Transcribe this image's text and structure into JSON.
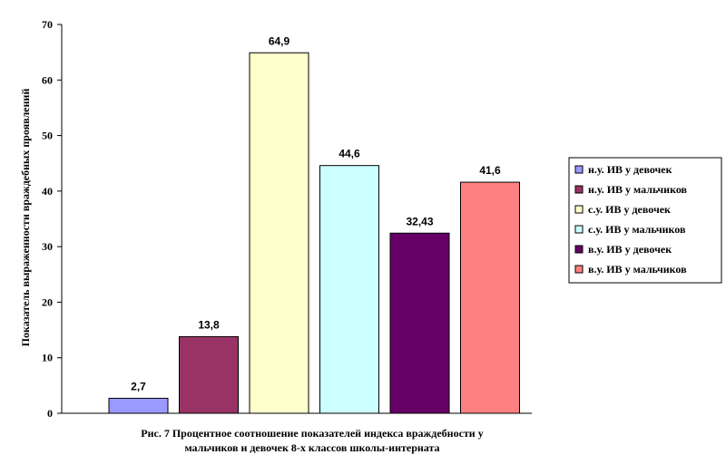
{
  "chart_data": {
    "type": "bar",
    "ylabel": "Показатель выраженности враждебных проявлений",
    "xlabel": "",
    "ylim": [
      0,
      70
    ],
    "yticks": [
      0,
      10,
      20,
      30,
      40,
      50,
      60,
      70
    ],
    "grid": false,
    "legend_position": "right",
    "caption_lines": [
      "Рис. 7 Процентное соотношение показателей индекса враждебности у",
      "мальчиков и девочек 8-х классов школы-интерната"
    ],
    "series": [
      {
        "name": "н.у. ИВ у девочек",
        "value": 2.7,
        "label": "2,7",
        "color": "#9999ff"
      },
      {
        "name": "н.у. ИВ у мальчиков",
        "value": 13.8,
        "label": "13,8",
        "color": "#993366"
      },
      {
        "name": "с.у. ИВ у девочек",
        "value": 64.9,
        "label": "64,9",
        "color": "#ffffcc"
      },
      {
        "name": "с.у. ИВ у мальчиков",
        "value": 44.6,
        "label": "44,6",
        "color": "#ccffff"
      },
      {
        "name": "в.у. ИВ у девочек",
        "value": 32.43,
        "label": "32,43",
        "color": "#660066"
      },
      {
        "name": "в.у. ИВ у мальчиков",
        "value": 41.6,
        "label": "41,6",
        "color": "#ff8080"
      }
    ]
  }
}
